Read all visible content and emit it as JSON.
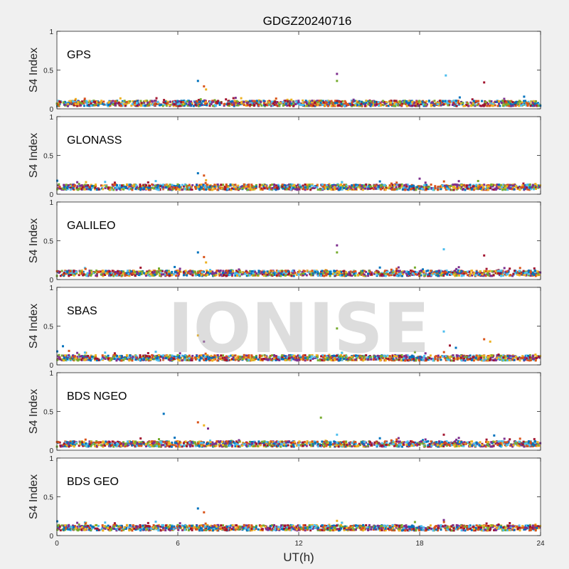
{
  "title": "GDGZ20240716",
  "xlabel": "UT(h)",
  "watermark": "IONISE",
  "colors": [
    "#0072bd",
    "#d95319",
    "#edb120",
    "#7e2f8e",
    "#77ac30",
    "#4dbeee",
    "#a2142f"
  ],
  "chart_data": [
    {
      "type": "scatter",
      "label": "GPS",
      "ylabel": "S4 Index",
      "xlim": [
        0,
        24
      ],
      "ylim": [
        0,
        1
      ],
      "xticks": [
        0,
        6,
        12,
        18,
        24
      ],
      "yticks": [
        0,
        0.5,
        1
      ],
      "baseline_s4": 0.07,
      "spikes": [
        {
          "x": 7.0,
          "y": 0.36
        },
        {
          "x": 7.3,
          "y": 0.29
        },
        {
          "x": 7.4,
          "y": 0.25
        },
        {
          "x": 13.9,
          "y": 0.45
        },
        {
          "x": 13.9,
          "y": 0.36
        },
        {
          "x": 19.3,
          "y": 0.43
        },
        {
          "x": 21.2,
          "y": 0.34
        }
      ]
    },
    {
      "type": "scatter",
      "label": "GLONASS",
      "ylabel": "S4 Index",
      "xlim": [
        0,
        24
      ],
      "ylim": [
        0,
        1
      ],
      "xticks": [
        0,
        6,
        12,
        18,
        24
      ],
      "yticks": [
        0,
        0.5,
        1
      ],
      "baseline_s4": 0.09,
      "spikes": [
        {
          "x": 7.0,
          "y": 0.27
        },
        {
          "x": 7.3,
          "y": 0.24
        },
        {
          "x": 7.4,
          "y": 0.18
        },
        {
          "x": 18.0,
          "y": 0.2
        },
        {
          "x": 20.9,
          "y": 0.17
        }
      ]
    },
    {
      "type": "scatter",
      "label": "GALILEO",
      "ylabel": "S4 Index",
      "xlim": [
        0,
        24
      ],
      "ylim": [
        0,
        1
      ],
      "xticks": [
        0,
        6,
        12,
        18,
        24
      ],
      "yticks": [
        0,
        0.5,
        1
      ],
      "baseline_s4": 0.08,
      "spikes": [
        {
          "x": 7.0,
          "y": 0.35
        },
        {
          "x": 7.3,
          "y": 0.29
        },
        {
          "x": 7.4,
          "y": 0.22
        },
        {
          "x": 13.9,
          "y": 0.44
        },
        {
          "x": 13.9,
          "y": 0.35
        },
        {
          "x": 19.2,
          "y": 0.39
        },
        {
          "x": 21.2,
          "y": 0.31
        }
      ]
    },
    {
      "type": "scatter",
      "label": "SBAS",
      "ylabel": "S4 Index",
      "xlim": [
        0,
        24
      ],
      "ylim": [
        0,
        1
      ],
      "xticks": [
        0,
        6,
        12,
        18,
        24
      ],
      "yticks": [
        0,
        0.5,
        1
      ],
      "baseline_s4": 0.09,
      "spikes": [
        {
          "x": 0.3,
          "y": 0.24
        },
        {
          "x": 0.6,
          "y": 0.18
        },
        {
          "x": 7.0,
          "y": 0.38
        },
        {
          "x": 7.3,
          "y": 0.3
        },
        {
          "x": 13.9,
          "y": 0.47
        },
        {
          "x": 19.2,
          "y": 0.43
        },
        {
          "x": 19.5,
          "y": 0.25
        },
        {
          "x": 19.8,
          "y": 0.22
        },
        {
          "x": 21.2,
          "y": 0.33
        },
        {
          "x": 21.5,
          "y": 0.3
        }
      ]
    },
    {
      "type": "scatter",
      "label": "BDS NGEO",
      "ylabel": "S4 Index",
      "xlim": [
        0,
        24
      ],
      "ylim": [
        0,
        1
      ],
      "xticks": [
        0,
        6,
        12,
        18,
        24
      ],
      "yticks": [
        0,
        0.5,
        1
      ],
      "baseline_s4": 0.08,
      "spikes": [
        {
          "x": 5.3,
          "y": 0.47
        },
        {
          "x": 7.0,
          "y": 0.36
        },
        {
          "x": 7.3,
          "y": 0.32
        },
        {
          "x": 7.5,
          "y": 0.28
        },
        {
          "x": 13.1,
          "y": 0.42
        },
        {
          "x": 13.9,
          "y": 0.2
        },
        {
          "x": 19.2,
          "y": 0.2
        },
        {
          "x": 21.7,
          "y": 0.19
        }
      ]
    },
    {
      "type": "scatter",
      "label": "BDS GEO",
      "ylabel": "S4 Index",
      "xlim": [
        0,
        24
      ],
      "ylim": [
        0,
        1
      ],
      "xticks": [
        0,
        6,
        12,
        18,
        24
      ],
      "yticks": [
        0,
        0.5,
        1
      ],
      "baseline_s4": 0.1,
      "spikes": [
        {
          "x": 7.0,
          "y": 0.35
        },
        {
          "x": 7.3,
          "y": 0.3
        },
        {
          "x": 13.9,
          "y": 0.19
        },
        {
          "x": 19.2,
          "y": 0.2
        }
      ]
    }
  ]
}
